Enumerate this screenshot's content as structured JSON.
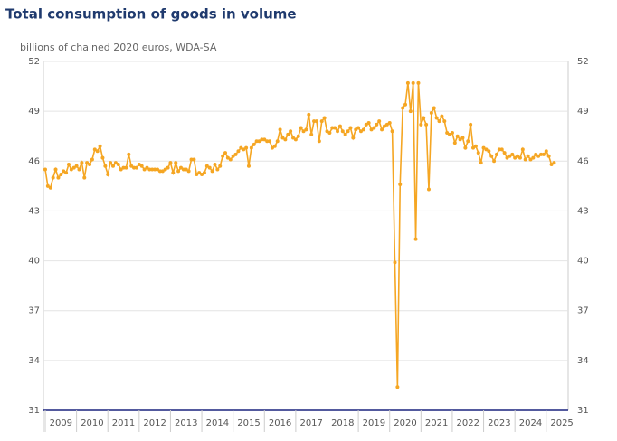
{
  "chart_data": {
    "type": "line",
    "title": "Total consumption of goods in volume",
    "subtitle": "billions of chained 2020 euros, WDA-SA",
    "color": "#f5a623",
    "ylim": [
      31,
      52
    ],
    "yticks": [
      31,
      34,
      37,
      40,
      43,
      46,
      49,
      52
    ],
    "grid": true,
    "xlim": [
      2009,
      2025.7
    ],
    "xticks": [
      2009,
      2010,
      2011,
      2012,
      2013,
      2014,
      2015,
      2016,
      2017,
      2018,
      2019,
      2020,
      2021,
      2022,
      2023,
      2024,
      2025
    ],
    "x": [
      2009,
      2009.083,
      2009.167,
      2009.25,
      2009.333,
      2009.417,
      2009.5,
      2009.583,
      2009.667,
      2009.75,
      2009.833,
      2009.917,
      2010,
      2010.083,
      2010.167,
      2010.25,
      2010.333,
      2010.417,
      2010.5,
      2010.583,
      2010.667,
      2010.75,
      2010.833,
      2010.917,
      2011,
      2011.083,
      2011.167,
      2011.25,
      2011.333,
      2011.417,
      2011.5,
      2011.583,
      2011.667,
      2011.75,
      2011.833,
      2011.917,
      2012,
      2012.083,
      2012.167,
      2012.25,
      2012.333,
      2012.417,
      2012.5,
      2012.583,
      2012.667,
      2012.75,
      2012.833,
      2012.917,
      2013,
      2013.083,
      2013.167,
      2013.25,
      2013.333,
      2013.417,
      2013.5,
      2013.583,
      2013.667,
      2013.75,
      2013.833,
      2013.917,
      2014,
      2014.083,
      2014.167,
      2014.25,
      2014.333,
      2014.417,
      2014.5,
      2014.583,
      2014.667,
      2014.75,
      2014.833,
      2014.917,
      2015,
      2015.083,
      2015.167,
      2015.25,
      2015.333,
      2015.417,
      2015.5,
      2015.583,
      2015.667,
      2015.75,
      2015.833,
      2015.917,
      2016,
      2016.083,
      2016.167,
      2016.25,
      2016.333,
      2016.417,
      2016.5,
      2016.583,
      2016.667,
      2016.75,
      2016.833,
      2016.917,
      2017,
      2017.083,
      2017.167,
      2017.25,
      2017.333,
      2017.417,
      2017.5,
      2017.583,
      2017.667,
      2017.75,
      2017.833,
      2017.917,
      2018,
      2018.083,
      2018.167,
      2018.25,
      2018.333,
      2018.417,
      2018.5,
      2018.583,
      2018.667,
      2018.75,
      2018.833,
      2018.917,
      2019,
      2019.083,
      2019.167,
      2019.25,
      2019.333,
      2019.417,
      2019.5,
      2019.583,
      2019.667,
      2019.75,
      2019.833,
      2019.917,
      2020,
      2020.083,
      2020.167,
      2020.25,
      2020.333,
      2020.417,
      2020.5,
      2020.583,
      2020.667,
      2020.75,
      2020.833,
      2020.917,
      2021,
      2021.083,
      2021.167,
      2021.25,
      2021.333,
      2021.417,
      2021.5,
      2021.583,
      2021.667,
      2021.75,
      2021.833,
      2021.917,
      2022,
      2022.083,
      2022.167,
      2022.25,
      2022.333,
      2022.417,
      2022.5,
      2022.583,
      2022.667,
      2022.75,
      2022.833,
      2022.917,
      2023,
      2023.083,
      2023.167,
      2023.25,
      2023.333,
      2023.417,
      2023.5,
      2023.583,
      2023.667,
      2023.75,
      2023.833,
      2023.917,
      2024,
      2024.083,
      2024.167,
      2024.25,
      2024.333,
      2024.417,
      2024.5,
      2024.583,
      2024.667,
      2024.75,
      2024.833,
      2024.917,
      2025,
      2025.083,
      2025.167,
      2025.25
    ],
    "values": [
      45.5,
      44.5,
      44.4,
      45.0,
      45.5,
      45.0,
      45.2,
      45.4,
      45.3,
      45.8,
      45.5,
      45.6,
      45.7,
      45.5,
      45.9,
      45.0,
      45.9,
      45.8,
      46.1,
      46.7,
      46.6,
      46.9,
      46.2,
      45.7,
      45.2,
      45.9,
      45.7,
      45.9,
      45.8,
      45.5,
      45.6,
      45.6,
      46.4,
      45.7,
      45.6,
      45.6,
      45.8,
      45.7,
      45.5,
      45.6,
      45.5,
      45.5,
      45.5,
      45.5,
      45.4,
      45.4,
      45.5,
      45.6,
      45.9,
      45.3,
      45.9,
      45.4,
      45.6,
      45.5,
      45.5,
      45.4,
      46.1,
      46.1,
      45.2,
      45.3,
      45.2,
      45.3,
      45.7,
      45.6,
      45.4,
      45.8,
      45.5,
      45.7,
      46.3,
      46.5,
      46.2,
      46.1,
      46.3,
      46.4,
      46.6,
      46.8,
      46.7,
      46.8,
      45.7,
      46.8,
      47.0,
      47.2,
      47.2,
      47.3,
      47.3,
      47.2,
      47.2,
      46.8,
      46.9,
      47.2,
      47.9,
      47.4,
      47.3,
      47.6,
      47.8,
      47.4,
      47.3,
      47.5,
      48.0,
      47.8,
      47.9,
      48.8,
      47.6,
      48.4,
      48.4,
      47.2,
      48.4,
      48.6,
      47.8,
      47.7,
      48.0,
      48.0,
      47.8,
      48.1,
      47.8,
      47.6,
      47.8,
      48.0,
      47.4,
      47.9,
      48.0,
      47.8,
      47.9,
      48.2,
      48.3,
      47.9,
      48.0,
      48.2,
      48.4,
      47.9,
      48.1,
      48.2,
      48.3,
      47.8,
      39.9,
      32.4,
      44.6,
      49.2,
      49.4,
      50.7,
      49.0,
      50.7,
      41.3,
      50.7,
      48.2,
      48.6,
      48.2,
      44.3,
      48.9,
      49.2,
      48.6,
      48.4,
      48.7,
      48.4,
      47.7,
      47.6,
      47.7,
      47.1,
      47.5,
      47.3,
      47.4,
      46.8,
      47.2,
      48.2,
      46.8,
      46.9,
      46.5,
      45.9,
      46.8,
      46.7,
      46.6,
      46.3,
      46.0,
      46.4,
      46.7,
      46.7,
      46.5,
      46.2,
      46.3,
      46.4,
      46.2,
      46.3,
      46.2,
      46.7,
      46.1,
      46.3,
      46.1,
      46.2,
      46.4,
      46.3,
      46.4,
      46.4,
      46.6,
      46.3,
      45.8,
      45.9
    ]
  }
}
